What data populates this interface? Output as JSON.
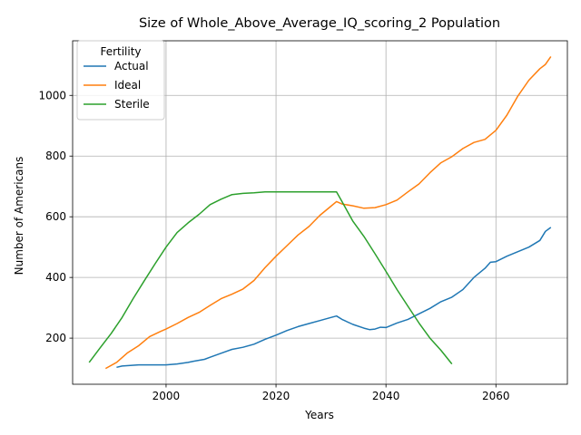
{
  "chart_data": {
    "type": "line",
    "title": "Size of Whole_Above_Average_IQ_scoring_2 Population",
    "xlabel": "Years",
    "ylabel": "Number of Americans",
    "xlim": [
      1983,
      2073
    ],
    "ylim": [
      48,
      1180
    ],
    "xticks": [
      2000,
      2020,
      2040,
      2060
    ],
    "yticks": [
      200,
      400,
      600,
      800,
      1000
    ],
    "grid": true,
    "legend": {
      "title": "Fertility",
      "placement": "top-left"
    },
    "series": [
      {
        "name": "Actual",
        "color": "#1f77b4",
        "points": [
          [
            1991,
            104
          ],
          [
            1992,
            108
          ],
          [
            1995,
            112
          ],
          [
            2000,
            112
          ],
          [
            2002,
            115
          ],
          [
            2004,
            120
          ],
          [
            2005,
            124
          ],
          [
            2007,
            130
          ],
          [
            2008,
            137
          ],
          [
            2010,
            150
          ],
          [
            2012,
            163
          ],
          [
            2014,
            170
          ],
          [
            2016,
            180
          ],
          [
            2018,
            196
          ],
          [
            2020,
            210
          ],
          [
            2022,
            225
          ],
          [
            2024,
            238
          ],
          [
            2026,
            248
          ],
          [
            2028,
            258
          ],
          [
            2030,
            268
          ],
          [
            2031,
            273
          ],
          [
            2032,
            262
          ],
          [
            2034,
            245
          ],
          [
            2036,
            233
          ],
          [
            2037,
            228
          ],
          [
            2038,
            230
          ],
          [
            2039,
            236
          ],
          [
            2040,
            235
          ],
          [
            2042,
            250
          ],
          [
            2044,
            262
          ],
          [
            2046,
            280
          ],
          [
            2048,
            298
          ],
          [
            2050,
            320
          ],
          [
            2052,
            335
          ],
          [
            2054,
            360
          ],
          [
            2056,
            400
          ],
          [
            2058,
            430
          ],
          [
            2059,
            450
          ],
          [
            2060,
            452
          ],
          [
            2062,
            470
          ],
          [
            2064,
            485
          ],
          [
            2066,
            500
          ],
          [
            2068,
            522
          ],
          [
            2069,
            552
          ],
          [
            2070,
            565
          ]
        ]
      },
      {
        "name": "Ideal",
        "color": "#ff7f0e",
        "points": [
          [
            1989,
            100
          ],
          [
            1991,
            120
          ],
          [
            1993,
            152
          ],
          [
            1995,
            175
          ],
          [
            1997,
            205
          ],
          [
            1999,
            222
          ],
          [
            2000,
            230
          ],
          [
            2002,
            248
          ],
          [
            2004,
            268
          ],
          [
            2006,
            285
          ],
          [
            2008,
            308
          ],
          [
            2010,
            330
          ],
          [
            2012,
            345
          ],
          [
            2014,
            362
          ],
          [
            2016,
            390
          ],
          [
            2018,
            432
          ],
          [
            2020,
            470
          ],
          [
            2022,
            505
          ],
          [
            2024,
            540
          ],
          [
            2026,
            568
          ],
          [
            2028,
            605
          ],
          [
            2030,
            635
          ],
          [
            2031,
            650
          ],
          [
            2032,
            642
          ],
          [
            2034,
            636
          ],
          [
            2036,
            628
          ],
          [
            2038,
            630
          ],
          [
            2040,
            640
          ],
          [
            2042,
            655
          ],
          [
            2044,
            682
          ],
          [
            2046,
            708
          ],
          [
            2048,
            745
          ],
          [
            2050,
            778
          ],
          [
            2052,
            798
          ],
          [
            2054,
            825
          ],
          [
            2056,
            845
          ],
          [
            2058,
            855
          ],
          [
            2060,
            885
          ],
          [
            2062,
            935
          ],
          [
            2064,
            998
          ],
          [
            2066,
            1050
          ],
          [
            2068,
            1088
          ],
          [
            2069,
            1102
          ],
          [
            2070,
            1128
          ]
        ]
      },
      {
        "name": "Sterile",
        "color": "#2ca02c",
        "points": [
          [
            1986,
            120
          ],
          [
            1988,
            168
          ],
          [
            1990,
            215
          ],
          [
            1992,
            268
          ],
          [
            1994,
            330
          ],
          [
            1996,
            388
          ],
          [
            1998,
            445
          ],
          [
            2000,
            500
          ],
          [
            2002,
            548
          ],
          [
            2004,
            580
          ],
          [
            2006,
            608
          ],
          [
            2008,
            640
          ],
          [
            2010,
            658
          ],
          [
            2012,
            673
          ],
          [
            2014,
            677
          ],
          [
            2016,
            679
          ],
          [
            2018,
            682
          ],
          [
            2020,
            682
          ],
          [
            2025,
            682
          ],
          [
            2031,
            682
          ],
          [
            2032,
            650
          ],
          [
            2034,
            585
          ],
          [
            2036,
            535
          ],
          [
            2038,
            478
          ],
          [
            2040,
            420
          ],
          [
            2042,
            360
          ],
          [
            2044,
            305
          ],
          [
            2046,
            250
          ],
          [
            2048,
            200
          ],
          [
            2050,
            160
          ],
          [
            2052,
            115
          ]
        ]
      }
    ]
  }
}
